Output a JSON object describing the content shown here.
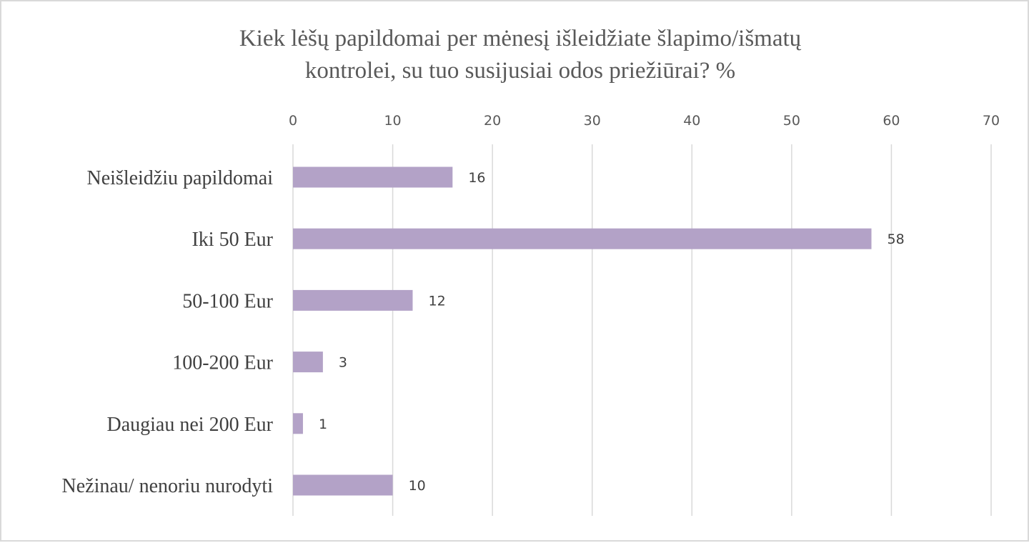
{
  "chart_data": {
    "type": "bar",
    "orientation": "horizontal",
    "title_lines": [
      "Kiek lėšų papildomai per mėnesį išleidžiate šlapimo/išmatų",
      "kontrolei, su tuo susijusiai odos priežiūrai? %"
    ],
    "categories": [
      "Neišleidžiu papildomai",
      "Iki 50 Eur",
      "50-100 Eur",
      "100-200 Eur",
      "Daugiau nei 200 Eur",
      "Nežinau/ nenoriu nurodyti"
    ],
    "values": [
      16,
      58,
      12,
      3,
      1,
      10
    ],
    "data_labels": [
      "16",
      "58",
      "12",
      "3",
      "1",
      "10"
    ],
    "xlim": [
      0,
      70
    ],
    "x_ticks": [
      "0",
      "10",
      "20",
      "30",
      "40",
      "50",
      "60",
      "70"
    ],
    "axis_position": "top",
    "grid": true,
    "legend": "none",
    "bar_color": "#b3a2c7",
    "grid_color": "#d9d9d9"
  }
}
